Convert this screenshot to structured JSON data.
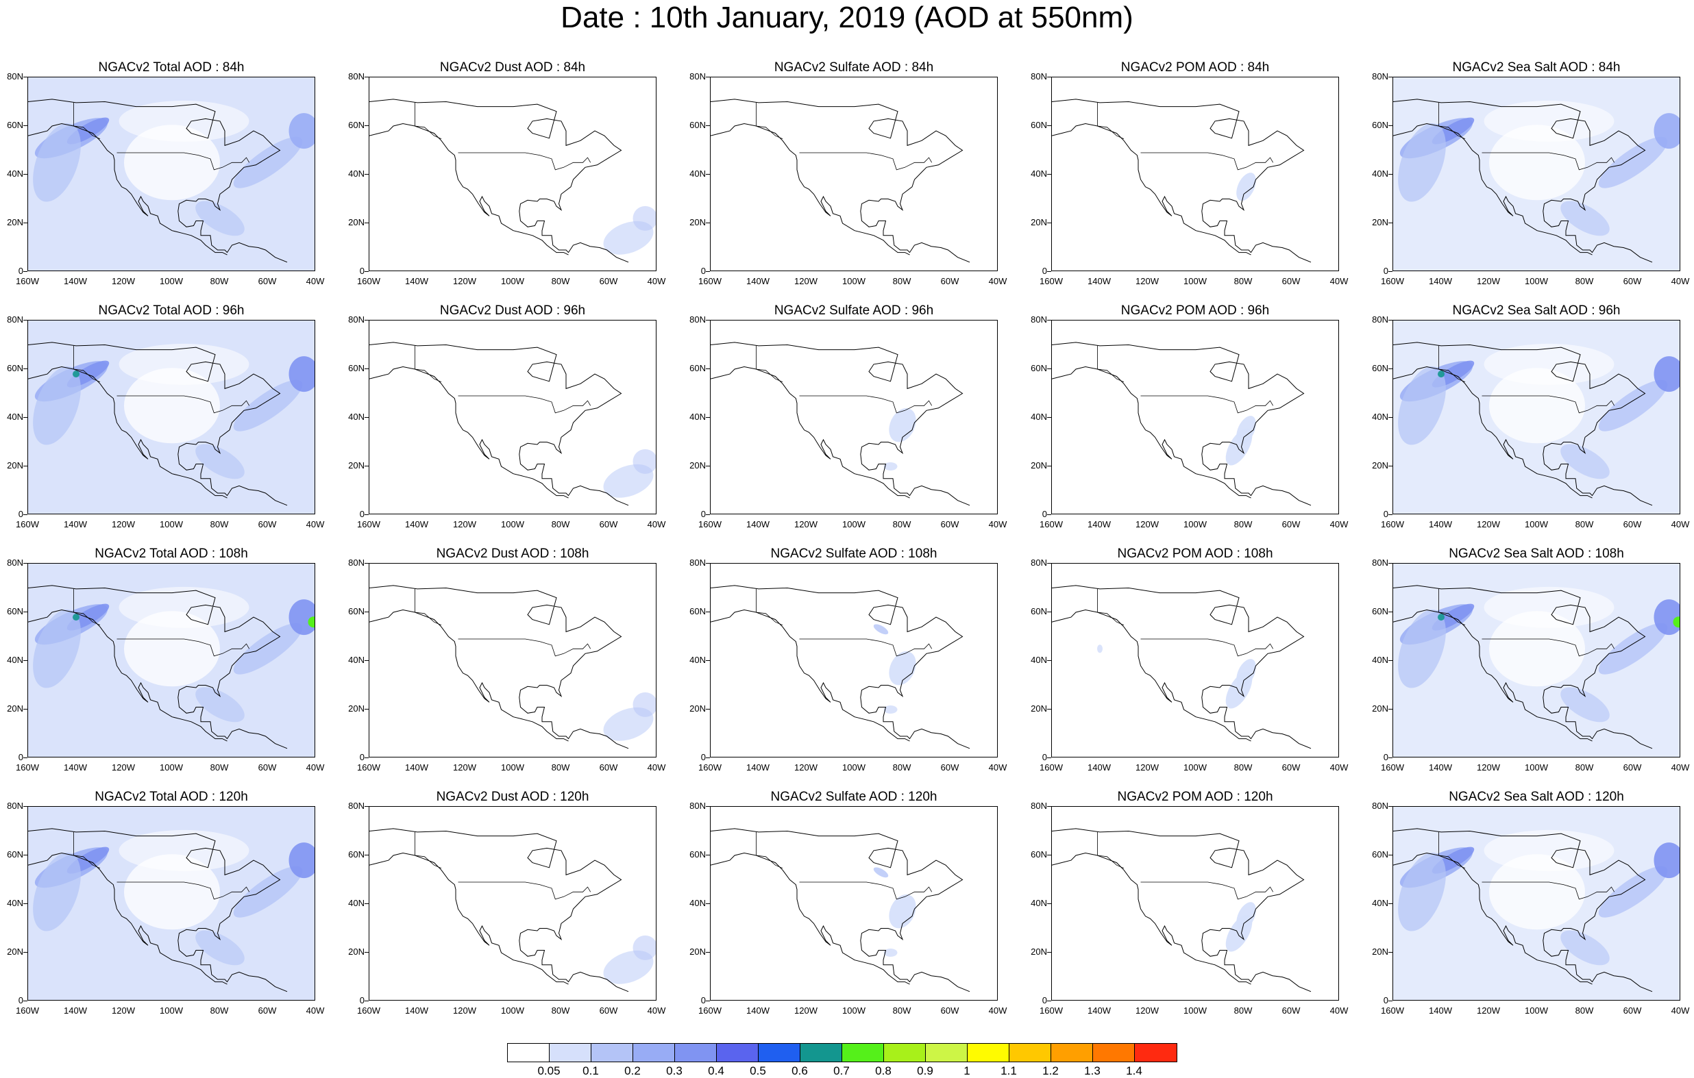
{
  "title": "Date : 10th January, 2019 (AOD at 550nm)",
  "columns": [
    "Total",
    "Dust",
    "Sulfate",
    "POM",
    "Sea Salt"
  ],
  "rows": [
    [
      "NGACv2 Total AOD : 84h",
      "NGACv2 Dust AOD : 84h",
      "NGACv2 Sulfate AOD : 84h",
      "NGACv2 POM AOD : 84h",
      "NGACv2 Sea Salt AOD : 84h"
    ],
    [
      "NGACv2 Total AOD : 96h",
      "NGACv2 Dust AOD : 96h",
      "NGACv2 Sulfate AOD : 96h",
      "NGACv2 POM AOD : 96h",
      "NGACv2 Sea Salt AOD : 96h"
    ],
    [
      "NGACv2 Total AOD : 108h",
      "NGACv2 Dust AOD : 108h",
      "NGACv2 Sulfate AOD : 108h",
      "NGACv2 POM AOD : 108h",
      "NGACv2 Sea Salt AOD : 108h"
    ],
    [
      "NGACv2 Total AOD : 120h",
      "NGACv2 Dust AOD : 120h",
      "NGACv2 Sulfate AOD : 120h",
      "NGACv2 POM AOD : 120h",
      "NGACv2 Sea Salt  AOD : 120h"
    ]
  ],
  "axis": {
    "lat_ticks": [
      "80N",
      "60N",
      "40N",
      "20N",
      "0"
    ],
    "lon_ticks": [
      "160W",
      "140W",
      "120W",
      "100W",
      "80W",
      "60W",
      "40W"
    ]
  },
  "colorbar": {
    "labels": [
      "0.05",
      "0.1",
      "0.2",
      "0.3",
      "0.4",
      "0.5",
      "0.6",
      "0.7",
      "0.8",
      "0.9",
      "1",
      "1.1",
      "1.2",
      "1.3",
      "1.4"
    ],
    "colors": [
      "#ffffff",
      "#d6e0fb",
      "#b4c4f7",
      "#98acf5",
      "#8094f2",
      "#5a64ee",
      "#1f5ff0",
      "#13968f",
      "#55f01a",
      "#a8f01a",
      "#cdf546",
      "#fffb00",
      "#ffc800",
      "#ff9f00",
      "#ff7800",
      "#ff2a10"
    ]
  },
  "aerosol_fields": [
    [
      "total",
      "dust",
      "sulfate",
      "pom",
      "seasalt"
    ],
    [
      "total",
      "dust",
      "sulfate",
      "pom",
      "seasalt"
    ],
    [
      "total",
      "dust",
      "sulfate",
      "pom",
      "seasalt"
    ],
    [
      "total",
      "dust",
      "sulfate",
      "pom",
      "seasalt"
    ]
  ]
}
